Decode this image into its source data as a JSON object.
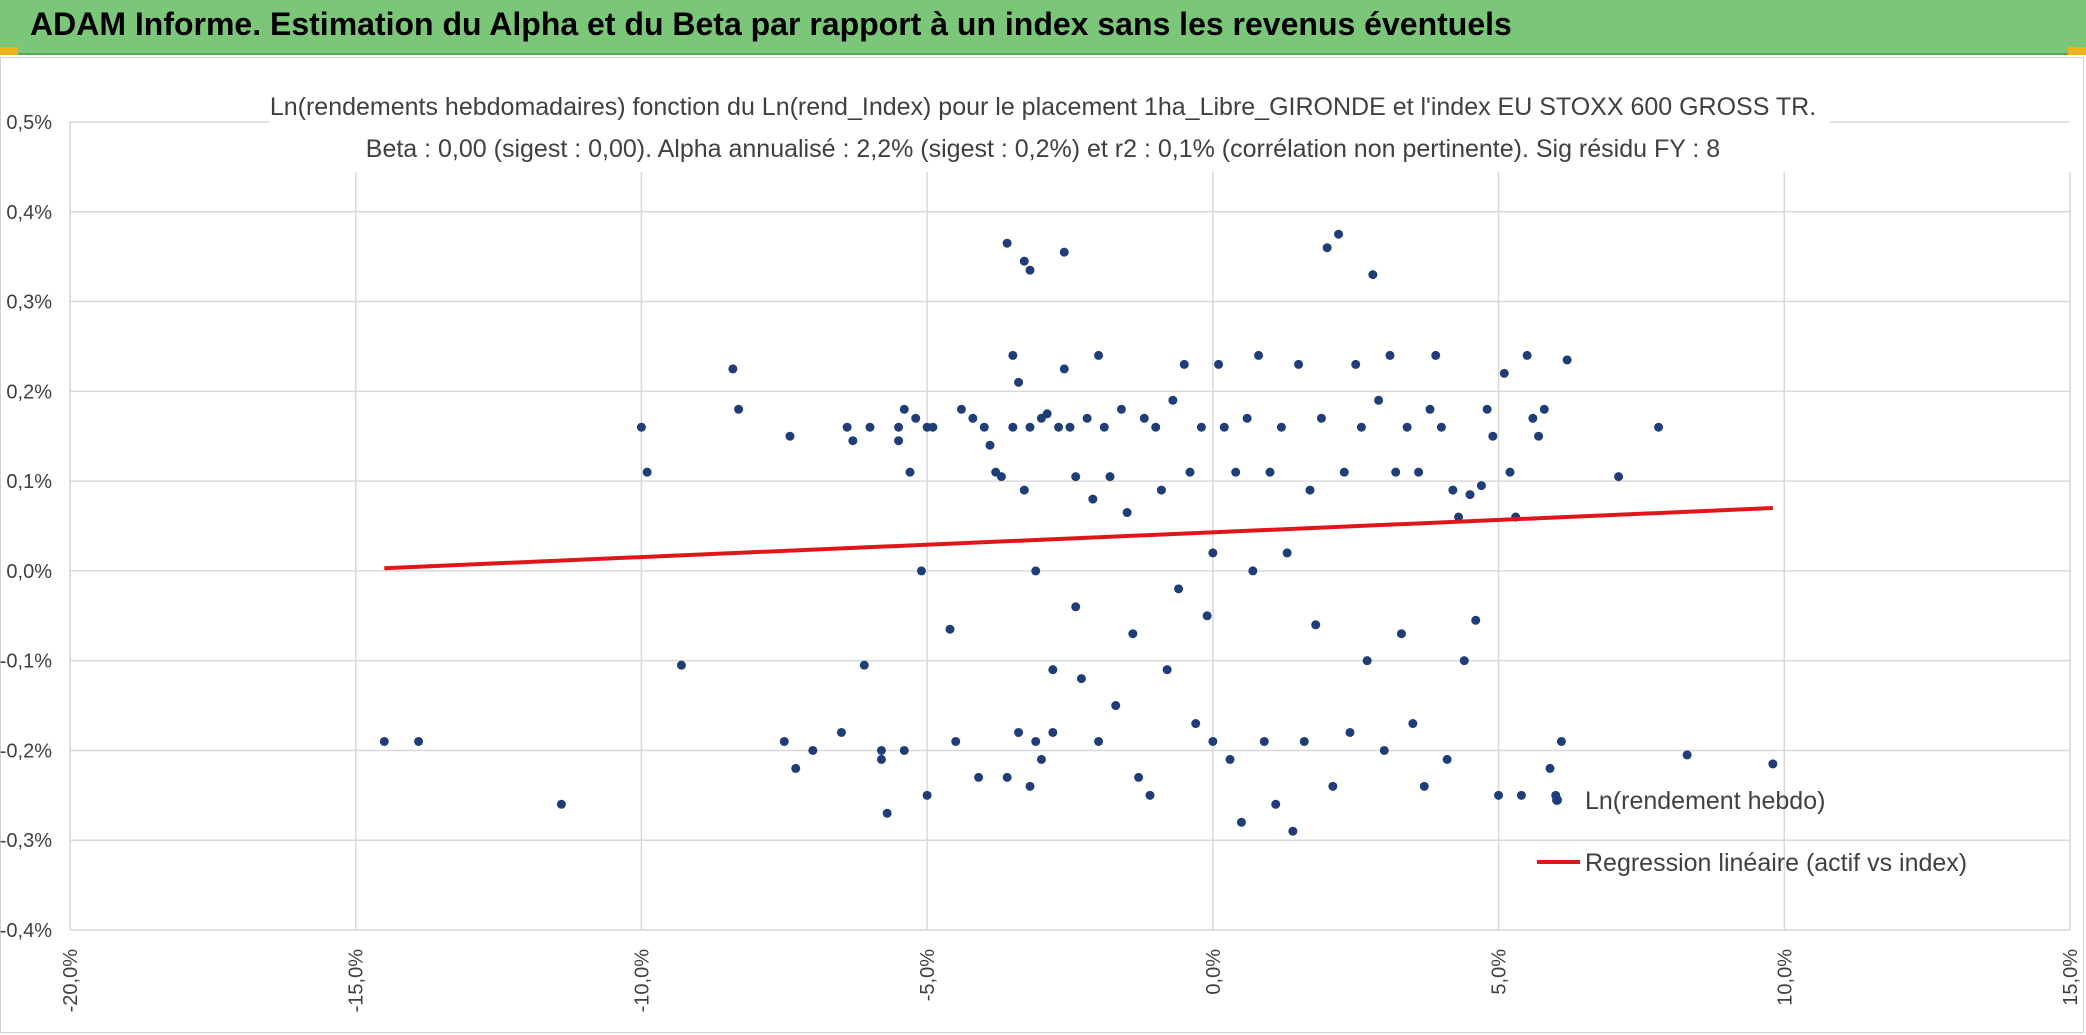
{
  "header": {
    "title": "ADAM Informe. Estimation du Alpha et du Beta par rapport à un index sans les revenus éventuels",
    "bg_color": "#7cc67a"
  },
  "chart_data": {
    "type": "scatter",
    "title": "Ln(rendements hebdomadaires) fonction du Ln(rend_Index) pour le placement 1ha_Libre_GIRONDE et l'index EU STOXX 600 GROSS TR.",
    "subtitle": "Beta : 0,00 (sigest : 0,00). Alpha annualisé : 2,2% (sigest : 0,2%) et r2 : 0,1% (corrélation non pertinente). Sig résidu FY : 8",
    "xlabel": "",
    "ylabel": "",
    "xlim": [
      -0.2,
      0.15
    ],
    "ylim": [
      -0.004,
      0.005
    ],
    "x_ticks": [
      "-20,0%",
      "-15,0%",
      "-10,0%",
      "-5,0%",
      "0,0%",
      "5,0%",
      "10,0%",
      "15,0%"
    ],
    "y_ticks": [
      "0,5%",
      "0,4%",
      "0,3%",
      "0,2%",
      "0,1%",
      "0,0%",
      "-0,1%",
      "-0,2%",
      "-0,3%",
      "-0,4%"
    ],
    "grid": true,
    "legend_position": "bottom-right",
    "series": [
      {
        "name": "Ln(rendement hebdo)",
        "kind": "scatter",
        "color": "#1f3e78"
      },
      {
        "name": "Regression linéaire (actif vs index)",
        "kind": "line",
        "color": "#e0161b",
        "x": [
          -0.145,
          0.098
        ],
        "y": [
          3e-05,
          0.0007
        ]
      }
    ],
    "points": [
      [
        -0.145,
        -0.0019
      ],
      [
        -0.139,
        -0.0019
      ],
      [
        -0.114,
        -0.0026
      ],
      [
        -0.1,
        0.0016
      ],
      [
        -0.099,
        0.0011
      ],
      [
        -0.093,
        -0.00105
      ],
      [
        -0.084,
        0.00225
      ],
      [
        -0.083,
        0.0018
      ],
      [
        -0.074,
        0.0015
      ],
      [
        -0.075,
        -0.0019
      ],
      [
        -0.073,
        -0.0022
      ],
      [
        -0.07,
        -0.002
      ],
      [
        -0.065,
        -0.0018
      ],
      [
        -0.064,
        0.0016
      ],
      [
        -0.063,
        0.00145
      ],
      [
        -0.061,
        -0.00105
      ],
      [
        -0.06,
        0.0016
      ],
      [
        -0.058,
        -0.0021
      ],
      [
        -0.058,
        -0.002
      ],
      [
        -0.057,
        -0.0027
      ],
      [
        -0.055,
        0.0016
      ],
      [
        -0.055,
        0.00145
      ],
      [
        -0.054,
        -0.002
      ],
      [
        -0.054,
        0.0018
      ],
      [
        -0.053,
        0.0011
      ],
      [
        -0.052,
        0.0017
      ],
      [
        -0.051,
        0.0
      ],
      [
        -0.05,
        0.0016
      ],
      [
        -0.05,
        -0.0025
      ],
      [
        -0.049,
        0.0016
      ],
      [
        -0.046,
        -0.00065
      ],
      [
        -0.045,
        -0.0019
      ],
      [
        -0.044,
        0.0018
      ],
      [
        -0.042,
        0.0017
      ],
      [
        -0.041,
        -0.0023
      ],
      [
        -0.04,
        0.0016
      ],
      [
        -0.039,
        0.0014
      ],
      [
        -0.038,
        0.0011
      ],
      [
        -0.037,
        0.00105
      ],
      [
        -0.036,
        -0.0023
      ],
      [
        -0.036,
        0.00365
      ],
      [
        -0.035,
        0.0024
      ],
      [
        -0.035,
        0.0016
      ],
      [
        -0.034,
        -0.0018
      ],
      [
        -0.034,
        0.0021
      ],
      [
        -0.033,
        0.00345
      ],
      [
        -0.033,
        0.0009
      ],
      [
        -0.032,
        -0.0024
      ],
      [
        -0.032,
        0.00335
      ],
      [
        -0.032,
        0.0016
      ],
      [
        -0.031,
        -0.0019
      ],
      [
        -0.031,
        0.0
      ],
      [
        -0.03,
        0.0017
      ],
      [
        -0.03,
        -0.0021
      ],
      [
        -0.029,
        0.00175
      ],
      [
        -0.028,
        -0.0011
      ],
      [
        -0.028,
        -0.0018
      ],
      [
        -0.027,
        0.0016
      ],
      [
        -0.026,
        0.00355
      ],
      [
        -0.026,
        0.00225
      ],
      [
        -0.025,
        0.0016
      ],
      [
        -0.024,
        -0.0004
      ],
      [
        -0.024,
        0.00105
      ],
      [
        -0.023,
        -0.0012
      ],
      [
        -0.022,
        0.0017
      ],
      [
        -0.021,
        0.0008
      ],
      [
        -0.02,
        -0.0019
      ],
      [
        -0.02,
        0.0024
      ],
      [
        -0.019,
        0.0016
      ],
      [
        -0.018,
        0.00105
      ],
      [
        -0.017,
        -0.0015
      ],
      [
        -0.016,
        0.0018
      ],
      [
        -0.015,
        0.00065
      ],
      [
        -0.014,
        -0.0007
      ],
      [
        -0.013,
        -0.0023
      ],
      [
        -0.012,
        0.0017
      ],
      [
        -0.011,
        -0.0025
      ],
      [
        -0.01,
        0.0016
      ],
      [
        -0.009,
        0.0009
      ],
      [
        -0.008,
        -0.0011
      ],
      [
        -0.007,
        0.0019
      ],
      [
        -0.006,
        -0.0002
      ],
      [
        -0.005,
        0.0023
      ],
      [
        -0.004,
        0.0011
      ],
      [
        -0.003,
        -0.0017
      ],
      [
        -0.002,
        0.0016
      ],
      [
        -0.001,
        -0.0005
      ],
      [
        0.0,
        0.0002
      ],
      [
        0.0,
        -0.0019
      ],
      [
        0.001,
        0.0023
      ],
      [
        0.002,
        0.0016
      ],
      [
        0.003,
        -0.0021
      ],
      [
        0.004,
        0.0011
      ],
      [
        0.005,
        -0.0028
      ],
      [
        0.006,
        0.0017
      ],
      [
        0.007,
        0.0
      ],
      [
        0.008,
        0.0024
      ],
      [
        0.009,
        -0.0019
      ],
      [
        0.01,
        0.0011
      ],
      [
        0.011,
        -0.0026
      ],
      [
        0.012,
        0.0016
      ],
      [
        0.013,
        0.0002
      ],
      [
        0.014,
        -0.0029
      ],
      [
        0.015,
        0.0023
      ],
      [
        0.016,
        -0.0019
      ],
      [
        0.017,
        0.0009
      ],
      [
        0.018,
        -0.0006
      ],
      [
        0.019,
        0.0017
      ],
      [
        0.02,
        0.0036
      ],
      [
        0.021,
        -0.0024
      ],
      [
        0.022,
        0.00375
      ],
      [
        0.023,
        0.0011
      ],
      [
        0.024,
        -0.0018
      ],
      [
        0.025,
        0.0023
      ],
      [
        0.026,
        0.0016
      ],
      [
        0.027,
        -0.001
      ],
      [
        0.028,
        0.0033
      ],
      [
        0.029,
        0.0019
      ],
      [
        0.03,
        -0.002
      ],
      [
        0.031,
        0.0024
      ],
      [
        0.032,
        0.0011
      ],
      [
        0.033,
        -0.0007
      ],
      [
        0.034,
        0.0016
      ],
      [
        0.035,
        -0.0017
      ],
      [
        0.036,
        0.0011
      ],
      [
        0.037,
        -0.0024
      ],
      [
        0.038,
        0.0018
      ],
      [
        0.039,
        0.0024
      ],
      [
        0.04,
        0.0016
      ],
      [
        0.041,
        -0.0021
      ],
      [
        0.042,
        0.0009
      ],
      [
        0.043,
        0.0006
      ],
      [
        0.044,
        -0.001
      ],
      [
        0.045,
        0.00085
      ],
      [
        0.046,
        -0.00055
      ],
      [
        0.047,
        0.00095
      ],
      [
        0.048,
        0.0018
      ],
      [
        0.049,
        0.0015
      ],
      [
        0.05,
        -0.0025
      ],
      [
        0.051,
        0.0022
      ],
      [
        0.052,
        0.0011
      ],
      [
        0.053,
        0.0006
      ],
      [
        0.054,
        -0.0025
      ],
      [
        0.055,
        0.0024
      ],
      [
        0.056,
        0.0017
      ],
      [
        0.057,
        0.0015
      ],
      [
        0.058,
        0.0018
      ],
      [
        0.059,
        -0.0022
      ],
      [
        0.06,
        -0.0025
      ],
      [
        0.061,
        -0.0019
      ],
      [
        0.062,
        0.00235
      ],
      [
        0.071,
        0.00105
      ],
      [
        0.078,
        0.0016
      ],
      [
        0.083,
        -0.00205
      ],
      [
        0.098,
        -0.00215
      ]
    ]
  }
}
